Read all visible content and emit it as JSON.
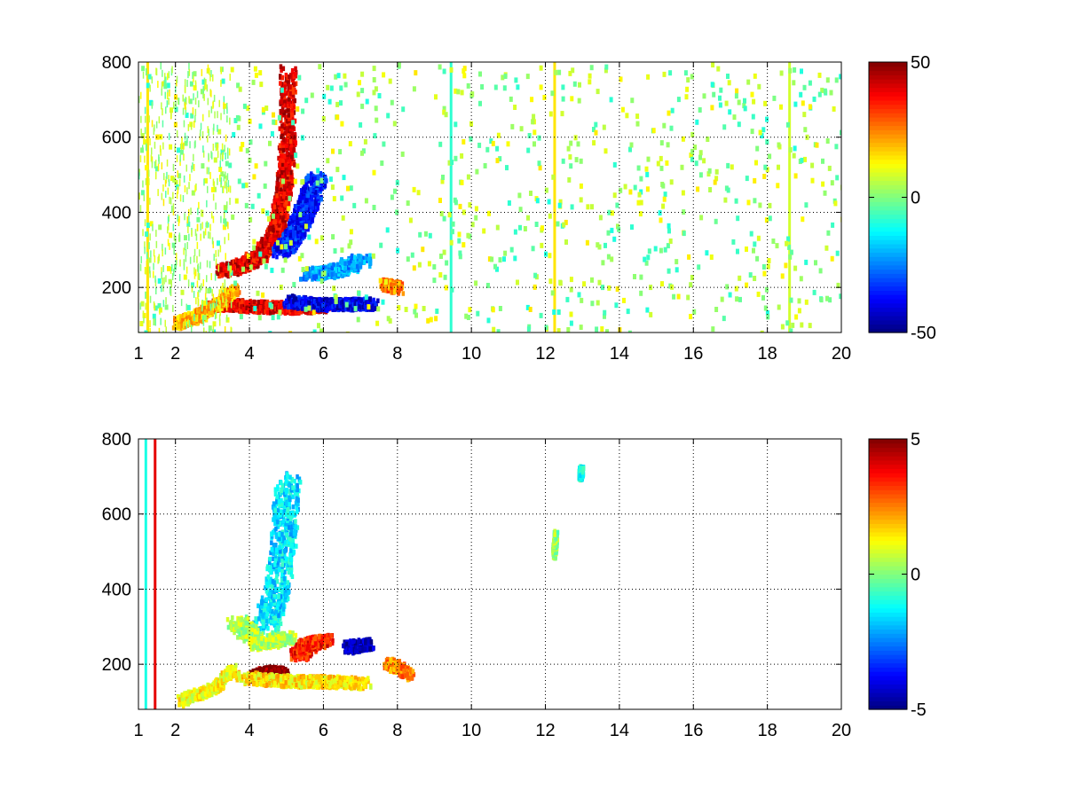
{
  "chart_data": [
    {
      "type": "heatmap",
      "title": "",
      "xlabel": "",
      "ylabel": "",
      "xlim": [
        1,
        20
      ],
      "ylim": [
        80,
        800
      ],
      "x_ticks": [
        1,
        2,
        4,
        6,
        8,
        10,
        12,
        14,
        16,
        18,
        20
      ],
      "x_tick_labels": [
        "1",
        "2",
        "4",
        "6",
        "8",
        "10",
        "12",
        "14",
        "16",
        "18",
        "20"
      ],
      "y_ticks": [
        200,
        400,
        600,
        800
      ],
      "y_tick_labels": [
        "200",
        "400",
        "600",
        "800"
      ],
      "grid": true,
      "colormap": "jet",
      "clim": [
        -50,
        50
      ],
      "colorbar_ticks": [
        50,
        0,
        -50
      ],
      "colorbar_tick_labels": [
        "50",
        "0",
        "-50"
      ],
      "features": [
        {
          "shape": "curve",
          "value": 40,
          "points": [
            [
              3.2,
              250
            ],
            [
              3.8,
              265
            ],
            [
              4.3,
              295
            ],
            [
              4.7,
              360
            ],
            [
              4.9,
              460
            ],
            [
              5.0,
              600
            ],
            [
              5.0,
              780
            ]
          ],
          "width": 0.22
        },
        {
          "shape": "curve",
          "value": -35,
          "points": [
            [
              4.8,
              300
            ],
            [
              5.2,
              350
            ],
            [
              5.5,
              420
            ],
            [
              5.8,
              500
            ]
          ],
          "width": 0.28
        },
        {
          "shape": "curve",
          "value": 40,
          "points": [
            [
              3.0,
              160
            ],
            [
              4.0,
              155
            ],
            [
              5.0,
              152
            ],
            [
              6.0,
              155
            ]
          ],
          "width": 0.15
        },
        {
          "shape": "curve",
          "value": -40,
          "points": [
            [
              5.0,
              170
            ],
            [
              5.8,
              160
            ],
            [
              6.6,
              160
            ],
            [
              7.3,
              162
            ]
          ],
          "width": 0.14
        },
        {
          "shape": "curve",
          "value": 25,
          "points": [
            [
              7.6,
              215
            ],
            [
              8.0,
              205
            ]
          ],
          "width": 0.12
        },
        {
          "shape": "curve",
          "value": 20,
          "points": [
            [
              2.0,
              110
            ],
            [
              2.6,
              130
            ],
            [
              3.1,
              160
            ],
            [
              3.6,
              200
            ]
          ],
          "width": 0.12
        },
        {
          "shape": "curve",
          "value": -22,
          "points": [
            [
              5.6,
              240
            ],
            [
              6.3,
              250
            ],
            [
              7.0,
              280
            ]
          ],
          "width": 0.3
        }
      ],
      "vertical_lines": [
        {
          "x": 9.45,
          "value": -8
        },
        {
          "x": 12.25,
          "value": 15
        },
        {
          "x": 18.6,
          "value": 8
        },
        {
          "x": 1.25,
          "value": 15
        }
      ]
    },
    {
      "type": "heatmap",
      "title": "",
      "xlabel": "",
      "ylabel": "",
      "xlim": [
        1,
        20
      ],
      "ylim": [
        80,
        800
      ],
      "x_ticks": [
        1,
        2,
        4,
        6,
        8,
        10,
        12,
        14,
        16,
        18,
        20
      ],
      "x_tick_labels": [
        "1",
        "2",
        "4",
        "6",
        "8",
        "10",
        "12",
        "14",
        "16",
        "18",
        "20"
      ],
      "y_ticks": [
        200,
        400,
        600,
        800
      ],
      "y_tick_labels": [
        "200",
        "400",
        "600",
        "800"
      ],
      "grid": true,
      "colormap": "jet",
      "clim": [
        -5,
        5
      ],
      "colorbar_ticks": [
        5,
        0,
        -5
      ],
      "colorbar_tick_labels": [
        "5",
        "0",
        "-5"
      ],
      "features": [
        {
          "shape": "curve",
          "value": 5,
          "points": [
            [
              4.2,
              170
            ],
            [
              4.5,
              185
            ],
            [
              4.8,
              180
            ]
          ],
          "width": 0.25
        },
        {
          "shape": "curve",
          "value": -1.5,
          "points": [
            [
              4.4,
              300
            ],
            [
              4.7,
              400
            ],
            [
              4.9,
              550
            ],
            [
              5.0,
              700
            ]
          ],
          "width": 0.35
        },
        {
          "shape": "curve",
          "value": 3.5,
          "points": [
            [
              5.3,
              230
            ],
            [
              5.6,
              260
            ],
            [
              6.0,
              270
            ]
          ],
          "width": 0.25
        },
        {
          "shape": "curve",
          "value": -4.5,
          "points": [
            [
              6.6,
              250
            ],
            [
              7.2,
              260
            ]
          ],
          "width": 0.15
        },
        {
          "shape": "curve",
          "value": 2.5,
          "points": [
            [
              7.7,
              210
            ],
            [
              8.3,
              180
            ]
          ],
          "width": 0.12
        },
        {
          "shape": "curve",
          "value": 1.5,
          "points": [
            [
              3.8,
              170
            ],
            [
              5.0,
              160
            ],
            [
              6.0,
              160
            ],
            [
              7.0,
              155
            ]
          ],
          "width": 0.3
        },
        {
          "shape": "curve",
          "value": 0.5,
          "points": [
            [
              3.6,
              320
            ],
            [
              4.3,
              260
            ],
            [
              5.0,
              280
            ]
          ],
          "width": 0.3
        },
        {
          "shape": "curve",
          "value": 1.2,
          "points": [
            [
              2.1,
              110
            ],
            [
              3.0,
              140
            ],
            [
              3.5,
              190
            ]
          ],
          "width": 0.1
        },
        {
          "shape": "curve",
          "value": 0.3,
          "points": [
            [
              12.2,
              500
            ],
            [
              12.25,
              550
            ]
          ],
          "width": 0.05
        },
        {
          "shape": "curve",
          "value": -1.0,
          "points": [
            [
              12.9,
              710
            ],
            [
              12.95,
              720
            ]
          ],
          "width": 0.05
        }
      ],
      "vertical_lines": [
        {
          "x": 1.45,
          "value": 4
        },
        {
          "x": 1.2,
          "value": -1
        }
      ]
    }
  ]
}
